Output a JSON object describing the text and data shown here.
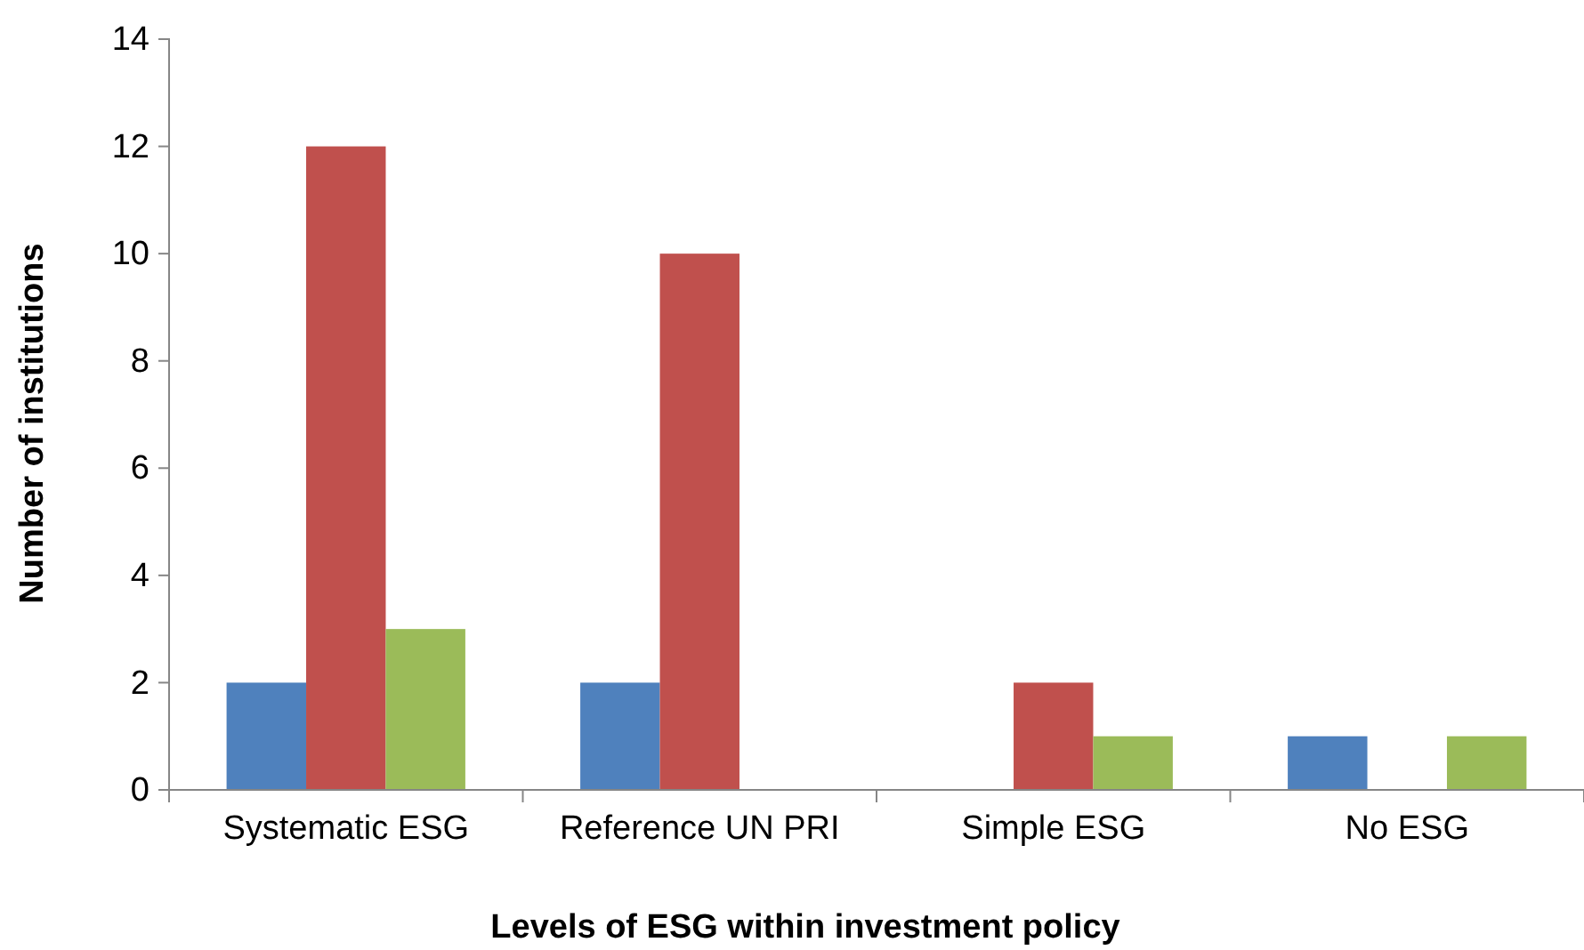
{
  "chart_data": {
    "type": "bar",
    "xlabel": "Levels of ESG within investment policy",
    "ylabel": "Number of institutions",
    "categories": [
      "Systematic ESG",
      "Reference UN PRI",
      "Simple ESG",
      "No ESG"
    ],
    "series": [
      {
        "color": "#4f81bd",
        "values": [
          2,
          2,
          0,
          1
        ]
      },
      {
        "color": "#c0504d",
        "values": [
          12,
          10,
          2,
          0
        ]
      },
      {
        "color": "#9bbb59",
        "values": [
          3,
          0,
          1,
          1
        ]
      }
    ],
    "ylim": [
      0,
      14
    ],
    "yticks": [
      0,
      2,
      4,
      6,
      8,
      10,
      12,
      14
    ],
    "grid": false
  }
}
